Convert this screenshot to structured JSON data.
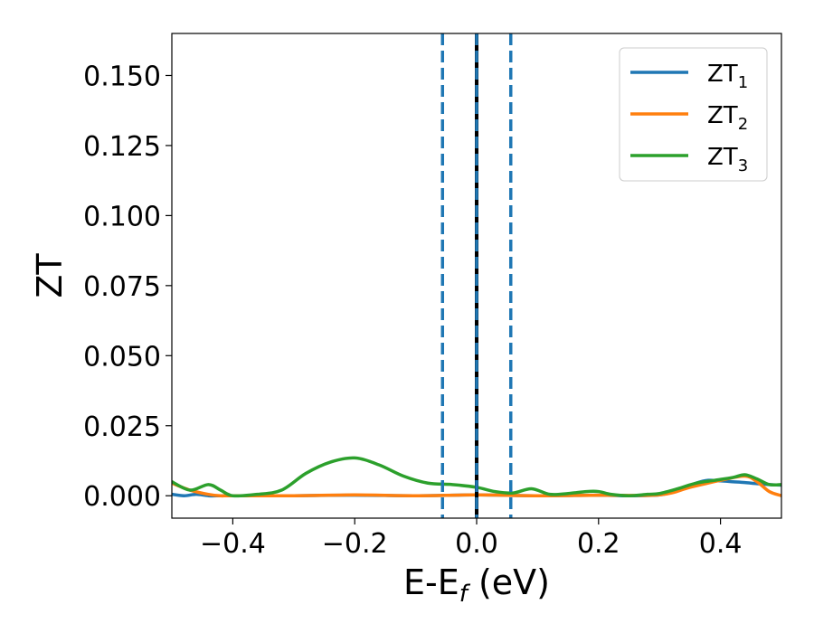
{
  "chart_data": {
    "type": "line",
    "xlabel_main": "E-E",
    "xlabel_sub": "f",
    "xlabel_unit": " (eV)",
    "ylabel": "ZT",
    "xlim": [
      -0.5,
      0.5
    ],
    "ylim": [
      -0.008,
      0.165
    ],
    "xticks": [
      -0.4,
      -0.2,
      0.0,
      0.2,
      0.4
    ],
    "xtick_labels": [
      "−0.4",
      "−0.2",
      "0.0",
      "0.2",
      "0.4"
    ],
    "yticks": [
      0.0,
      0.025,
      0.05,
      0.075,
      0.1,
      0.125,
      0.15
    ],
    "ytick_labels": [
      "0.000",
      "0.025",
      "0.050",
      "0.075",
      "0.100",
      "0.125",
      "0.150"
    ],
    "grid": false,
    "legend_position": "top-right",
    "vlines": [
      {
        "x": -0.056,
        "style": "dashed",
        "color": "#1f77b4"
      },
      {
        "x": 0.0,
        "style": "solid",
        "color": "#000000"
      },
      {
        "x": 0.0,
        "style": "dashed",
        "color": "#1f77b4"
      },
      {
        "x": 0.056,
        "style": "dashed",
        "color": "#1f77b4"
      }
    ],
    "series": [
      {
        "name_main": "ZT",
        "name_sub": "1",
        "color": "#1f77b4",
        "x": [
          -0.5,
          -0.48,
          -0.46,
          -0.44,
          -0.42,
          -0.4,
          -0.3,
          -0.2,
          -0.1,
          0.0,
          0.1,
          0.2,
          0.25,
          0.3,
          0.33,
          0.36,
          0.38,
          0.4,
          0.42,
          0.44,
          0.46,
          0.48,
          0.5
        ],
        "y": [
          0.0005,
          0.0,
          0.0005,
          0.0,
          0.0,
          0.0,
          0.0,
          0.0002,
          0.0,
          0.0003,
          0.0,
          0.0002,
          0.0,
          0.0003,
          0.002,
          0.0045,
          0.0055,
          0.0053,
          0.005,
          0.0047,
          0.0043,
          0.004,
          0.0038
        ]
      },
      {
        "name_main": "ZT",
        "name_sub": "2",
        "color": "#ff7f0e",
        "x": [
          -0.5,
          -0.47,
          -0.44,
          -0.42,
          -0.4,
          -0.3,
          -0.2,
          -0.1,
          0.0,
          0.1,
          0.2,
          0.3,
          0.35,
          0.4,
          0.44,
          0.46,
          0.48,
          0.5
        ],
        "y": [
          0.0045,
          0.002,
          0.0005,
          0.0,
          0.0,
          0.0,
          0.0003,
          0.0,
          0.0003,
          0.0,
          0.0002,
          0.0003,
          0.003,
          0.0055,
          0.007,
          0.005,
          0.0015,
          0.0
        ]
      },
      {
        "name_main": "ZT",
        "name_sub": "3",
        "color": "#2ca02c",
        "x": [
          -0.5,
          -0.47,
          -0.44,
          -0.42,
          -0.4,
          -0.36,
          -0.32,
          -0.28,
          -0.24,
          -0.2,
          -0.16,
          -0.12,
          -0.08,
          -0.04,
          0.0,
          0.03,
          0.06,
          0.09,
          0.12,
          0.15,
          0.18,
          0.2,
          0.22,
          0.25,
          0.28,
          0.3,
          0.33,
          0.36,
          0.39,
          0.42,
          0.44,
          0.46,
          0.48,
          0.5
        ],
        "y": [
          0.005,
          0.002,
          0.004,
          0.002,
          0.0,
          0.0005,
          0.002,
          0.008,
          0.012,
          0.0135,
          0.011,
          0.007,
          0.0045,
          0.004,
          0.003,
          0.0015,
          0.001,
          0.0025,
          0.0005,
          0.0008,
          0.0015,
          0.0015,
          0.0005,
          0.0,
          0.0005,
          0.0008,
          0.0025,
          0.0045,
          0.0055,
          0.0065,
          0.0075,
          0.006,
          0.004,
          0.004
        ]
      }
    ]
  }
}
